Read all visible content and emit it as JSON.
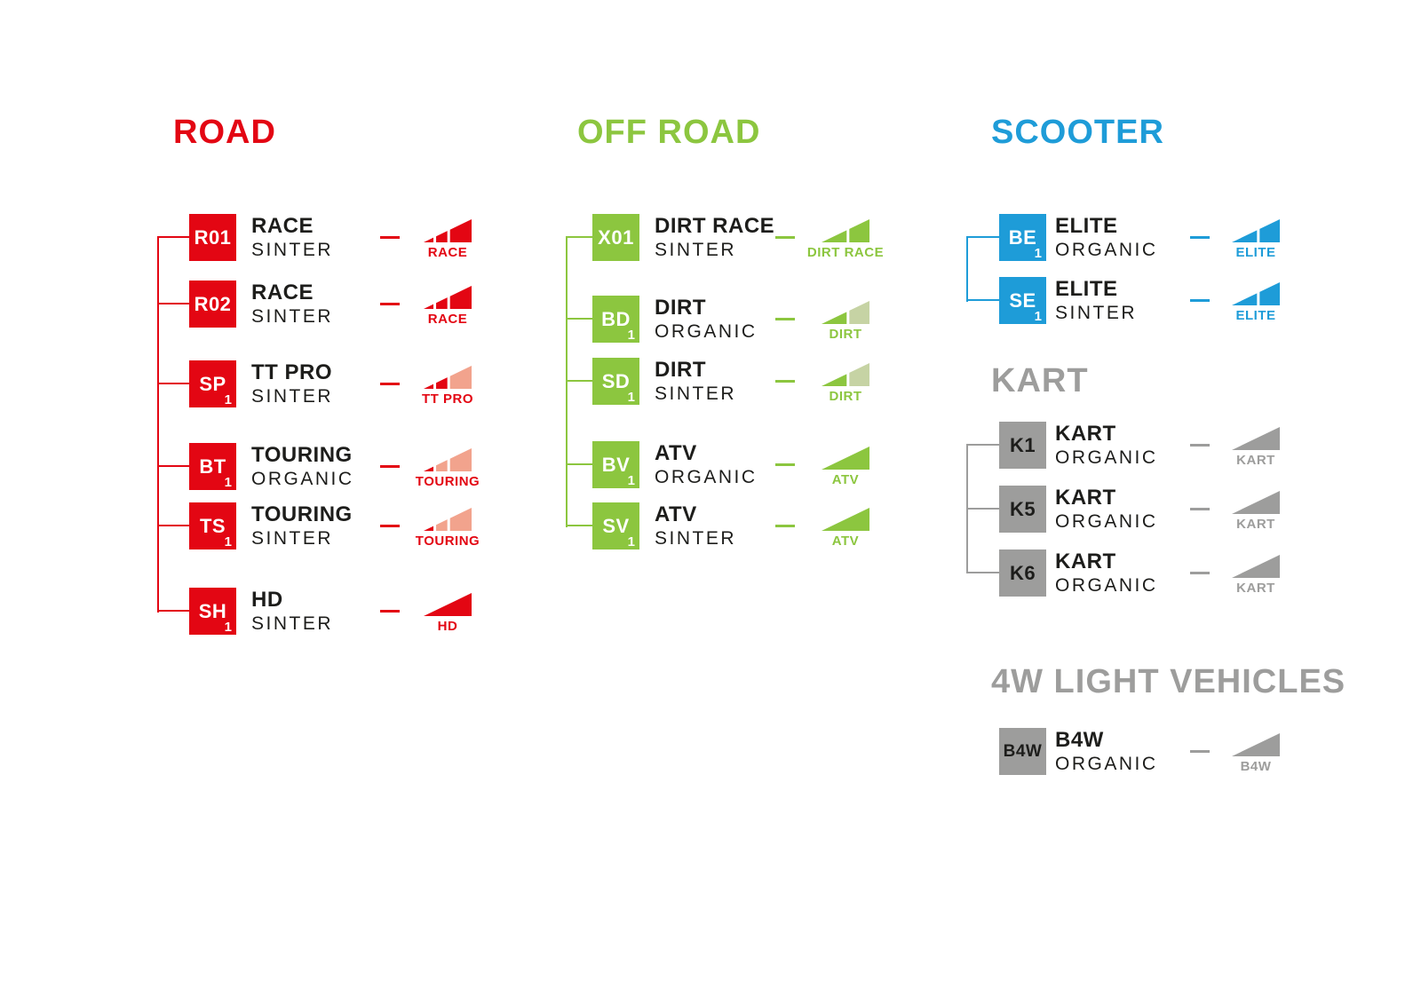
{
  "page": {
    "background": "#ffffff",
    "text_color": "#1d1d1b"
  },
  "sections": [
    {
      "id": "road",
      "title": "ROAD",
      "color": "#e30613",
      "muted": "#f2a38d",
      "rows": [
        {
          "code": "R01",
          "sub": "",
          "name": "RACE",
          "material": "SINTER",
          "icon": {
            "segments": [
              "full",
              "full",
              "full"
            ],
            "label": "RACE"
          }
        },
        {
          "code": "R02",
          "sub": "",
          "name": "RACE",
          "material": "SINTER",
          "icon": {
            "segments": [
              "full",
              "full",
              "full"
            ],
            "label": "RACE"
          }
        },
        {
          "code": "SP",
          "sub": "1",
          "name": "TT PRO",
          "material": "SINTER",
          "icon": {
            "segments": [
              "full",
              "full",
              "muted"
            ],
            "label": "TT PRO"
          }
        },
        {
          "code": "BT",
          "sub": "1",
          "name": "TOURING",
          "material": "ORGANIC",
          "icon": {
            "segments": [
              "full",
              "muted",
              "muted"
            ],
            "label": "TOURING"
          }
        },
        {
          "code": "TS",
          "sub": "1",
          "name": "TOURING",
          "material": "SINTER",
          "icon": {
            "segments": [
              "full",
              "muted",
              "muted"
            ],
            "label": "TOURING"
          }
        },
        {
          "code": "SH",
          "sub": "1",
          "name": "HD",
          "material": "SINTER",
          "icon": {
            "segments": [
              "full"
            ],
            "label": "HD"
          }
        }
      ]
    },
    {
      "id": "offroad",
      "title": "OFF ROAD",
      "color": "#8cc63f",
      "muted": "#c6d3a4",
      "rows": [
        {
          "code": "X01",
          "sub": "",
          "name": "DIRT RACE",
          "material": "SINTER",
          "icon": {
            "segments": [
              "full",
              "full"
            ],
            "label": "DIRT RACE"
          }
        },
        {
          "code": "BD",
          "sub": "1",
          "name": "DIRT",
          "material": "ORGANIC",
          "icon": {
            "segments": [
              "full",
              "muted"
            ],
            "label": "DIRT"
          }
        },
        {
          "code": "SD",
          "sub": "1",
          "name": "DIRT",
          "material": "SINTER",
          "icon": {
            "segments": [
              "full",
              "muted"
            ],
            "label": "DIRT"
          }
        },
        {
          "code": "BV",
          "sub": "1",
          "name": "ATV",
          "material": "ORGANIC",
          "icon": {
            "segments": [
              "full"
            ],
            "label": "ATV"
          }
        },
        {
          "code": "SV",
          "sub": "1",
          "name": "ATV",
          "material": "SINTER",
          "icon": {
            "segments": [
              "full"
            ],
            "label": "ATV"
          }
        }
      ]
    },
    {
      "id": "scooter",
      "title": "SCOOTER",
      "color": "#1e9cd8",
      "muted": "#a9d6ef",
      "rows": [
        {
          "code": "BE",
          "sub": "1",
          "name": "ELITE",
          "material": "ORGANIC",
          "icon": {
            "segments": [
              "full",
              "full"
            ],
            "label": "ELITE"
          }
        },
        {
          "code": "SE",
          "sub": "1",
          "name": "ELITE",
          "material": "SINTER",
          "icon": {
            "segments": [
              "full",
              "full"
            ],
            "label": "ELITE"
          }
        }
      ]
    },
    {
      "id": "kart",
      "title": "KART",
      "color": "#9d9d9c",
      "muted": "#cfcfce",
      "rows": [
        {
          "code": "K1",
          "sub": "",
          "name": "KART",
          "material": "ORGANIC",
          "icon": {
            "segments": [
              "full"
            ],
            "label": "KART"
          }
        },
        {
          "code": "K5",
          "sub": "",
          "name": "KART",
          "material": "ORGANIC",
          "icon": {
            "segments": [
              "full"
            ],
            "label": "KART"
          }
        },
        {
          "code": "K6",
          "sub": "",
          "name": "KART",
          "material": "ORGANIC",
          "icon": {
            "segments": [
              "full"
            ],
            "label": "KART"
          }
        }
      ]
    },
    {
      "id": "lv4w",
      "title": "4W LIGHT VEHICLES",
      "color": "#9d9d9c",
      "muted": "#cfcfce",
      "rows": [
        {
          "code": "B4W",
          "sub": "",
          "name": "B4W",
          "material": "ORGANIC",
          "icon": {
            "segments": [
              "full"
            ],
            "label": "B4W"
          }
        }
      ]
    }
  ]
}
